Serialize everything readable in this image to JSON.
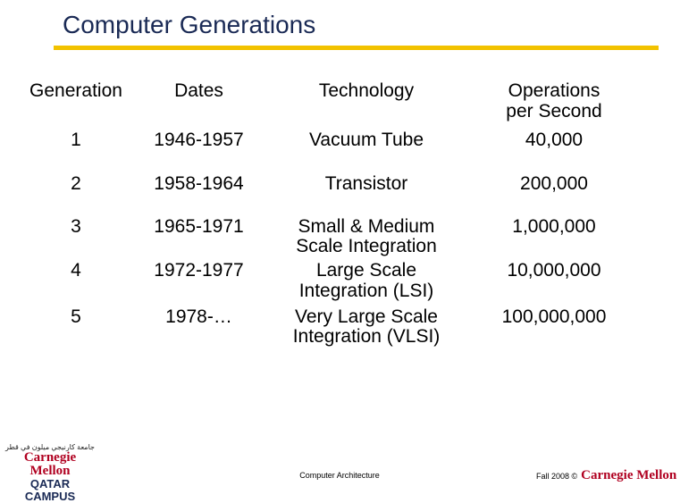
{
  "title": "Computer Generations",
  "headers": {
    "generation": "Generation",
    "dates": "Dates",
    "technology": "Technology",
    "ops_line1": "Operations",
    "ops_line2": "per Second"
  },
  "rows": [
    {
      "generation": "1",
      "dates": "1946-1957",
      "tech1": "Vacuum Tube",
      "tech2": "",
      "ops": "40,000"
    },
    {
      "generation": "2",
      "dates": "1958-1964",
      "tech1": "Transistor",
      "tech2": "",
      "ops": "200,000"
    },
    {
      "generation": "3",
      "dates": "1965-1971",
      "tech1": "Small & Medium",
      "tech2": "Scale Integration",
      "ops": "1,000,000"
    },
    {
      "generation": "4",
      "dates": "1972-1977",
      "tech1": "Large Scale",
      "tech2": "Integration (LSI)",
      "ops": "10,000,000"
    },
    {
      "generation": "5",
      "dates": "1978-…",
      "tech1": "Very Large Scale",
      "tech2": "Integration (VLSI)",
      "ops": "100,000,000"
    }
  ],
  "footer": {
    "logo_arabic": "جامعة كارنيجي ميلون في قطر",
    "logo_name": "Carnegie Mellon",
    "logo_campus": "QATAR CAMPUS",
    "course": "Computer Architecture",
    "term": "Fall 2008 ©",
    "brand": "Carnegie Mellon"
  },
  "colors": {
    "title": "#1a2a55",
    "rule": "#f2c200",
    "brand_red": "#b00020"
  }
}
